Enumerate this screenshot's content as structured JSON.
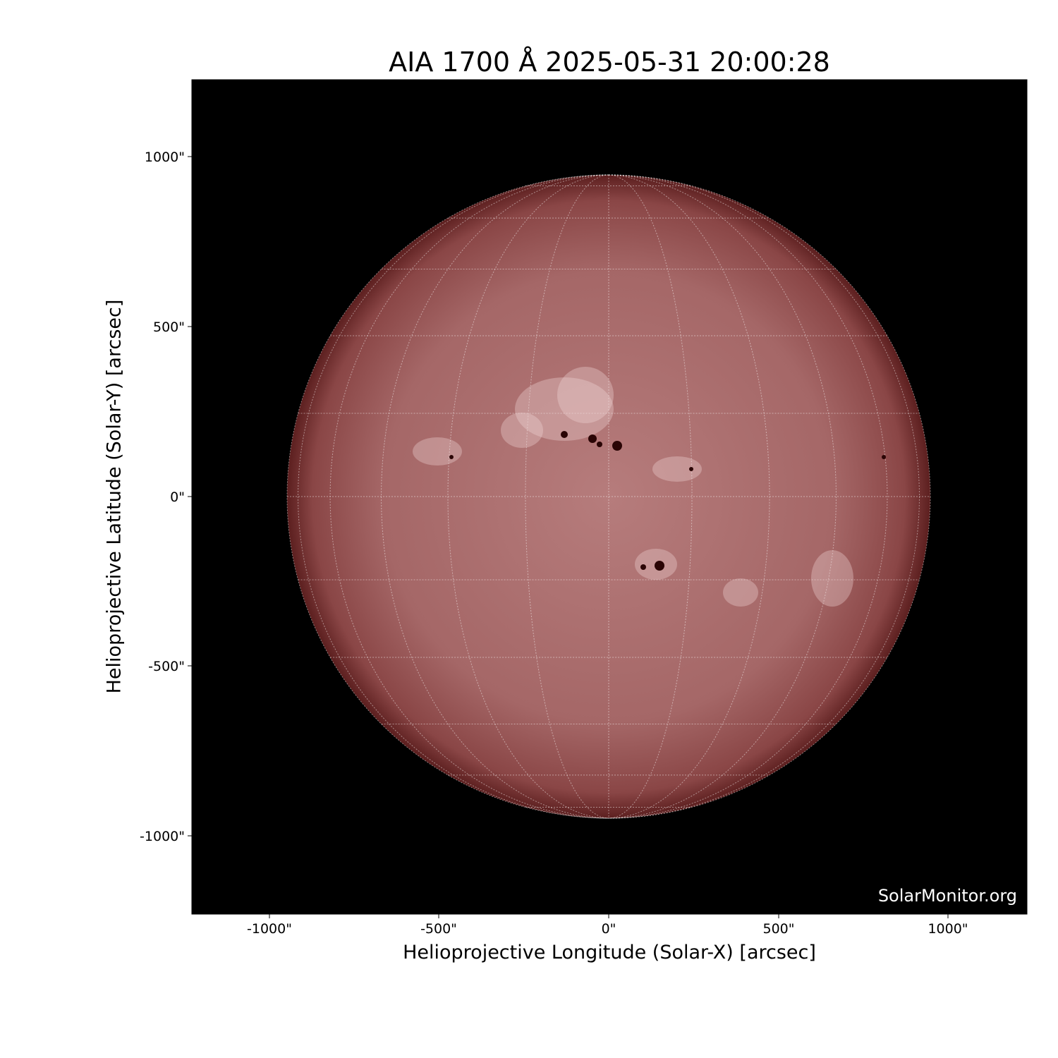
{
  "title": "AIA 1700 Å 2025-05-31 20:00:28",
  "xlabel": "Helioprojective Longitude (Solar-X) [arcsec]",
  "ylabel": "Helioprojective Latitude (Solar-Y) [arcsec]",
  "x_ticks": [
    "-1000\"",
    "-500\"",
    "0\"",
    "500\"",
    "1000\""
  ],
  "y_ticks": [
    "1000\"",
    "500\"",
    "0\"",
    "-500\"",
    "-1000\""
  ],
  "watermark": "SolarMonitor.org",
  "colors": {
    "background": "#000000",
    "disk": "#a86a6a",
    "limb": "#5a1e1e",
    "grid": "#ffffff"
  }
}
